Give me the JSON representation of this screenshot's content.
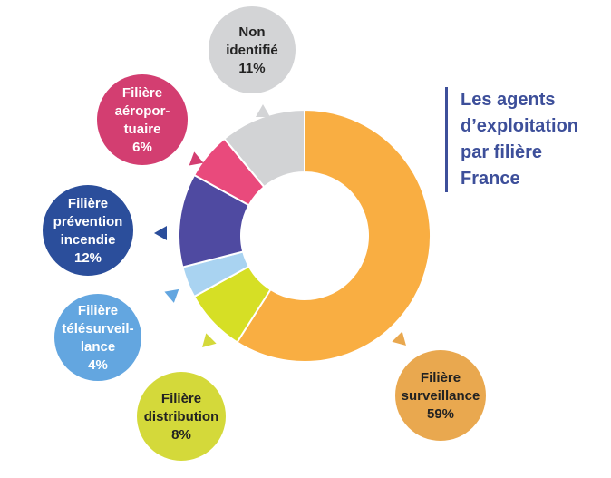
{
  "title_lines": [
    "Les agents",
    "d’exploitation",
    "par filière",
    "France"
  ],
  "chart_data": {
    "type": "pie",
    "title": "Les agents d’exploitation par filière France",
    "donut": true,
    "legend": "labels-in-bubbles",
    "slices": [
      {
        "name": "surveillance",
        "label_lines": [
          "Filière",
          "surveillance"
        ],
        "value_label": "59%",
        "value": 59,
        "color": "#f9ae42",
        "bubble_color": "#e9a84f",
        "text_color": "#222222"
      },
      {
        "name": "distribution",
        "label_lines": [
          "Filière",
          "distribution"
        ],
        "value_label": "8%",
        "value": 8,
        "color": "#d6df25",
        "bubble_color": "#d4d93a",
        "text_color": "#222222"
      },
      {
        "name": "télésurveillance",
        "label_lines": [
          "Filière",
          "télésurveil-",
          "lance"
        ],
        "value_label": "4%",
        "value": 4,
        "color": "#a9d3f1",
        "bubble_color": "#63a6e0",
        "text_color": "#ffffff"
      },
      {
        "name": "prévention incendie",
        "label_lines": [
          "Filière",
          "prévention",
          "incendie"
        ],
        "value_label": "12%",
        "value": 12,
        "color": "#4f4aa1",
        "bubble_color": "#2b4e9b",
        "text_color": "#ffffff"
      },
      {
        "name": "aéroportuaire",
        "label_lines": [
          "Filière",
          "aéropor-",
          "tuaire"
        ],
        "value_label": "6%",
        "value": 6,
        "color": "#e94a7c",
        "bubble_color": "#d33e71",
        "text_color": "#ffffff"
      },
      {
        "name": "non identifié",
        "label_lines": [
          "Non",
          "identifié"
        ],
        "value_label": "11%",
        "value": 11,
        "color": "#d2d3d5",
        "bubble_color": "#d3d4d6",
        "text_color": "#222222"
      }
    ]
  }
}
